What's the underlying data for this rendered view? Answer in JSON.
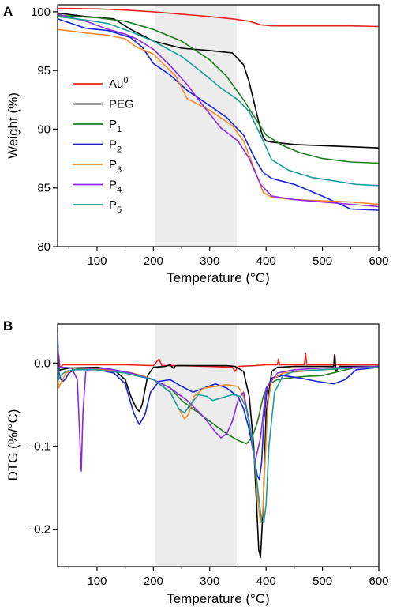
{
  "colors": {
    "Au0": "#e8231f",
    "PEG": "#000000",
    "P1": "#1e7d1e",
    "P2": "#1a24d6",
    "P3": "#f28a22",
    "P4": "#8a2be2",
    "P5": "#1c9c9c",
    "shade": "#ececec"
  },
  "chart_data": [
    {
      "type": "line",
      "panel": "A",
      "xlabel": "Temperature (°C)",
      "ylabel": "Weight (%)",
      "xlim": [
        30,
        600
      ],
      "ylim": [
        80,
        100.6
      ],
      "xticks": [
        100,
        200,
        300,
        400,
        500,
        600
      ],
      "yticks": [
        80,
        85,
        90,
        95,
        100
      ],
      "shaded_range": [
        203,
        348
      ],
      "legend_position": "left",
      "series": [
        {
          "key": "Au0",
          "name": "Au",
          "sup": "0",
          "x": [
            30,
            100,
            150,
            200,
            250,
            300,
            340,
            370,
            390,
            410,
            450,
            500,
            550,
            600
          ],
          "y": [
            100.3,
            100.25,
            100.15,
            100.0,
            99.8,
            99.6,
            99.4,
            99.2,
            98.9,
            98.8,
            98.8,
            98.8,
            98.8,
            98.75
          ]
        },
        {
          "key": "PEG",
          "name": "PEG",
          "sub": "",
          "x": [
            30,
            80,
            130,
            160,
            200,
            250,
            300,
            340,
            360,
            370,
            380,
            390,
            395,
            400,
            410,
            450,
            500,
            550,
            600
          ],
          "y": [
            99.9,
            99.6,
            99.4,
            98.5,
            97.5,
            96.9,
            96.7,
            96.5,
            95.5,
            94.0,
            92.0,
            90.0,
            89.3,
            89.0,
            88.9,
            88.7,
            88.6,
            88.5,
            88.4
          ]
        },
        {
          "key": "P1",
          "name": "P",
          "sub": "1",
          "x": [
            30,
            100,
            150,
            200,
            250,
            300,
            330,
            360,
            380,
            400,
            430,
            460,
            500,
            550,
            600
          ],
          "y": [
            99.7,
            99.5,
            99.2,
            98.5,
            97.5,
            95.9,
            94.5,
            92.5,
            91.0,
            89.5,
            88.6,
            88.0,
            87.5,
            87.2,
            87.1
          ]
        },
        {
          "key": "P2",
          "name": "P",
          "sub": "2",
          "x": [
            30,
            80,
            120,
            160,
            180,
            200,
            230,
            260,
            300,
            330,
            360,
            380,
            395,
            410,
            450,
            500,
            550,
            600
          ],
          "y": [
            99.4,
            98.6,
            98.4,
            97.8,
            97.0,
            95.6,
            94.6,
            93.3,
            92.0,
            91.0,
            89.5,
            87.5,
            86.3,
            85.8,
            85.3,
            84.3,
            83.2,
            83.1
          ]
        },
        {
          "key": "P3",
          "name": "P",
          "sub": "3",
          "x": [
            30,
            80,
            120,
            150,
            170,
            200,
            240,
            260,
            300,
            340,
            360,
            380,
            395,
            410,
            450,
            500,
            550,
            600
          ],
          "y": [
            98.5,
            98.2,
            98.0,
            97.7,
            97.0,
            96.4,
            94.5,
            92.6,
            91.6,
            90.3,
            89.0,
            86.5,
            84.6,
            84.2,
            84.0,
            83.9,
            83.8,
            83.6
          ]
        },
        {
          "key": "P4",
          "name": "P",
          "sub": "4",
          "x": [
            30,
            80,
            120,
            150,
            170,
            200,
            230,
            260,
            290,
            320,
            350,
            370,
            390,
            410,
            450,
            500,
            550,
            600
          ],
          "y": [
            99.8,
            99.2,
            98.5,
            98.1,
            97.7,
            96.8,
            95.4,
            93.8,
            91.9,
            90.1,
            89.0,
            87.5,
            85.3,
            84.3,
            84.0,
            83.8,
            83.6,
            83.4
          ]
        },
        {
          "key": "P5",
          "name": "P",
          "sub": "5",
          "x": [
            30,
            80,
            120,
            160,
            200,
            250,
            290,
            320,
            350,
            370,
            390,
            410,
            440,
            480,
            520,
            560,
            600
          ],
          "y": [
            99.6,
            99.3,
            99.0,
            98.3,
            97.5,
            96.2,
            94.7,
            93.5,
            92.5,
            91.5,
            89.5,
            87.4,
            86.5,
            85.9,
            85.6,
            85.3,
            85.2
          ]
        }
      ]
    },
    {
      "type": "line",
      "panel": "B",
      "xlabel": "Temperature (°C)",
      "ylabel": "DTG (%/°C)",
      "xlim": [
        30,
        600
      ],
      "ylim": [
        -0.245,
        0.047
      ],
      "xticks": [
        100,
        200,
        300,
        400,
        500,
        600
      ],
      "yticks": [
        0.0,
        -0.1,
        -0.2
      ],
      "ytick_labels": [
        "0.0",
        "-0.1",
        "-0.2"
      ],
      "shaded_range": [
        203,
        348
      ],
      "series": [
        {
          "key": "Au0",
          "x": [
            30,
            32,
            34,
            40,
            100,
            150,
            200,
            210,
            215,
            220,
            250,
            300,
            340,
            345,
            350,
            380,
            400,
            420,
            422,
            424,
            450,
            468,
            470,
            472,
            500,
            520,
            521,
            523,
            550,
            600
          ],
          "y": [
            -0.01,
            0.01,
            -0.005,
            -0.002,
            -0.002,
            -0.002,
            -0.003,
            0.005,
            -0.003,
            -0.003,
            -0.003,
            -0.004,
            -0.005,
            -0.01,
            -0.004,
            -0.003,
            -0.002,
            -0.002,
            0.005,
            -0.002,
            -0.002,
            -0.002,
            0.012,
            -0.002,
            -0.002,
            -0.002,
            0.01,
            -0.002,
            -0.002,
            -0.002
          ]
        },
        {
          "key": "PEG",
          "x": [
            30,
            32,
            35,
            50,
            100,
            130,
            150,
            160,
            170,
            175,
            180,
            190,
            200,
            220,
            230,
            235,
            240,
            260,
            300,
            330,
            345,
            360,
            370,
            378,
            383,
            387,
            390,
            395,
            400,
            410,
            420,
            450,
            500,
            520,
            522,
            524,
            530,
            550,
            600
          ],
          "y": [
            0.02,
            -0.01,
            -0.008,
            -0.006,
            -0.005,
            -0.008,
            -0.02,
            -0.04,
            -0.055,
            -0.058,
            -0.05,
            -0.015,
            -0.005,
            -0.004,
            -0.002,
            -0.006,
            -0.003,
            -0.003,
            -0.003,
            -0.003,
            -0.004,
            -0.01,
            -0.04,
            -0.1,
            -0.17,
            -0.225,
            -0.234,
            -0.17,
            -0.06,
            -0.01,
            -0.005,
            -0.004,
            -0.004,
            -0.004,
            0.01,
            -0.01,
            -0.004,
            -0.004,
            -0.004
          ]
        },
        {
          "key": "P1",
          "x": [
            30,
            35,
            60,
            100,
            150,
            200,
            230,
            250,
            270,
            300,
            330,
            350,
            365,
            375,
            385,
            395,
            405,
            420,
            440,
            470,
            500,
            530,
            560,
            600
          ],
          "y": [
            -0.01,
            -0.005,
            -0.006,
            -0.008,
            -0.012,
            -0.02,
            -0.03,
            -0.045,
            -0.055,
            -0.07,
            -0.085,
            -0.093,
            -0.097,
            -0.09,
            -0.07,
            -0.04,
            -0.025,
            -0.02,
            -0.018,
            -0.016,
            -0.015,
            -0.01,
            -0.005,
            -0.004
          ]
        },
        {
          "key": "P2",
          "x": [
            30,
            32,
            36,
            40,
            45,
            50,
            60,
            80,
            100,
            130,
            150,
            165,
            175,
            185,
            195,
            210,
            230,
            250,
            270,
            290,
            310,
            330,
            350,
            360,
            370,
            378,
            384,
            388,
            392,
            396,
            402,
            410,
            430,
            460,
            490,
            520,
            540,
            560,
            600
          ],
          "y": [
            0.04,
            -0.01,
            -0.02,
            -0.022,
            -0.018,
            -0.012,
            -0.008,
            -0.007,
            -0.008,
            -0.012,
            -0.025,
            -0.06,
            -0.074,
            -0.062,
            -0.035,
            -0.022,
            -0.02,
            -0.028,
            -0.035,
            -0.03,
            -0.025,
            -0.03,
            -0.04,
            -0.055,
            -0.08,
            -0.11,
            -0.135,
            -0.14,
            -0.12,
            -0.07,
            -0.03,
            -0.018,
            -0.015,
            -0.018,
            -0.022,
            -0.025,
            -0.02,
            -0.008,
            -0.005
          ]
        },
        {
          "key": "P3",
          "x": [
            30,
            32,
            35,
            45,
            60,
            100,
            150,
            180,
            200,
            230,
            245,
            255,
            262,
            272,
            290,
            310,
            330,
            350,
            360,
            370,
            380,
            386,
            390,
            394,
            398,
            403,
            410,
            430,
            460,
            500,
            550,
            600
          ],
          "y": [
            0.0,
            -0.03,
            -0.025,
            -0.012,
            -0.008,
            -0.007,
            -0.01,
            -0.015,
            -0.02,
            -0.035,
            -0.055,
            -0.067,
            -0.062,
            -0.04,
            -0.03,
            -0.028,
            -0.026,
            -0.028,
            -0.04,
            -0.07,
            -0.12,
            -0.17,
            -0.192,
            -0.18,
            -0.12,
            -0.05,
            -0.02,
            -0.012,
            -0.01,
            -0.008,
            -0.006,
            -0.005
          ]
        },
        {
          "key": "P4",
          "x": [
            30,
            40,
            55,
            65,
            70,
            72,
            75,
            80,
            90,
            100,
            130,
            160,
            200,
            230,
            260,
            290,
            310,
            320,
            330,
            340,
            350,
            360,
            370,
            380,
            390,
            400,
            420,
            450,
            500,
            550,
            600
          ],
          "y": [
            -0.005,
            -0.005,
            -0.006,
            -0.02,
            -0.1,
            -0.13,
            -0.06,
            -0.01,
            -0.006,
            -0.006,
            -0.008,
            -0.012,
            -0.02,
            -0.03,
            -0.045,
            -0.065,
            -0.083,
            -0.09,
            -0.085,
            -0.07,
            -0.045,
            -0.035,
            -0.07,
            -0.12,
            -0.09,
            -0.03,
            -0.012,
            -0.008,
            -0.006,
            -0.005,
            -0.004
          ]
        },
        {
          "key": "P5",
          "x": [
            30,
            32,
            35,
            45,
            60,
            100,
            150,
            200,
            230,
            245,
            255,
            265,
            280,
            295,
            305,
            320,
            340,
            355,
            365,
            375,
            385,
            392,
            396,
            400,
            405,
            415,
            430,
            450,
            500,
            550,
            600
          ],
          "y": [
            0.0,
            -0.02,
            -0.015,
            -0.01,
            -0.008,
            -0.008,
            -0.012,
            -0.02,
            -0.035,
            -0.055,
            -0.06,
            -0.05,
            -0.038,
            -0.04,
            -0.045,
            -0.042,
            -0.038,
            -0.04,
            -0.055,
            -0.09,
            -0.15,
            -0.19,
            -0.192,
            -0.17,
            -0.1,
            -0.035,
            -0.015,
            -0.01,
            -0.008,
            -0.006,
            -0.005
          ]
        }
      ]
    }
  ]
}
